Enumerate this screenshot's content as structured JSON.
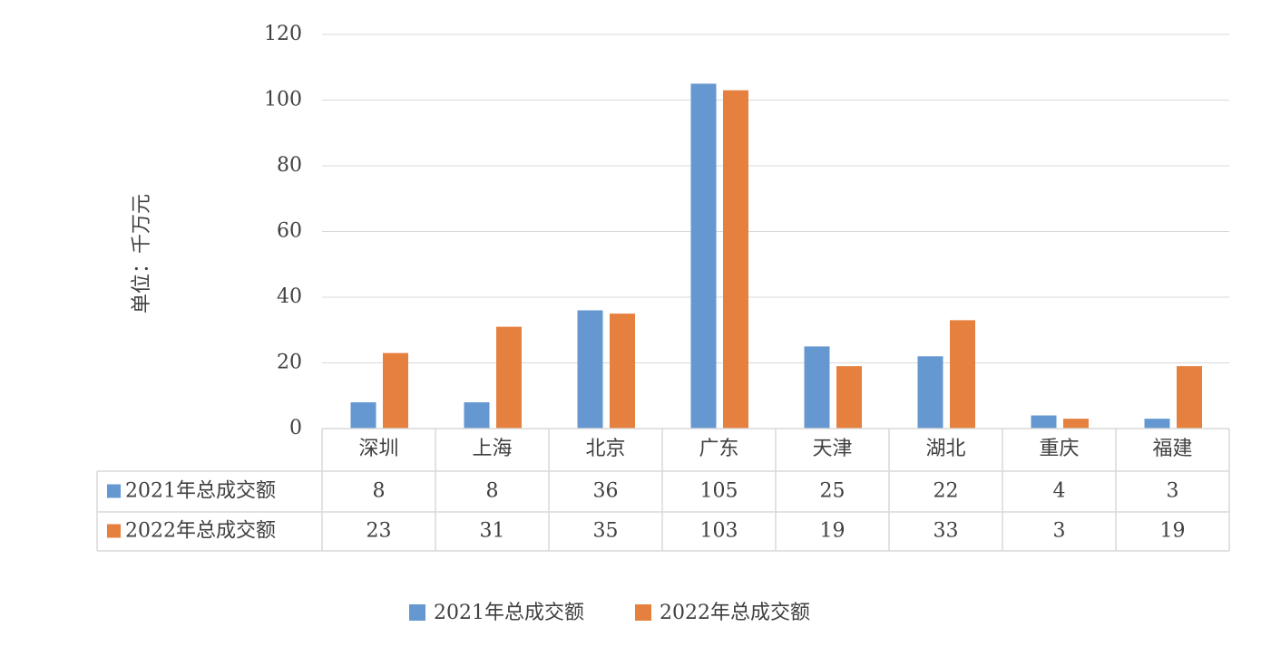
{
  "chart_data": {
    "type": "bar",
    "y_label": "单位：千万元",
    "categories": [
      "深圳",
      "上海",
      "北京",
      "广东",
      "天津",
      "湖北",
      "重庆",
      "福建"
    ],
    "series": [
      {
        "name": "2021年总成交额",
        "color": "#6597d0",
        "values": [
          8,
          8,
          36,
          105,
          25,
          22,
          4,
          3
        ]
      },
      {
        "name": "2022年总成交额",
        "color": "#e5803f",
        "values": [
          23,
          31,
          35,
          103,
          19,
          33,
          3,
          19
        ]
      }
    ],
    "ylim": [
      0,
      120
    ],
    "yticks": [
      0,
      20,
      40,
      60,
      80,
      100,
      120
    ],
    "grid": true,
    "legend": "bottom",
    "data_table": true
  }
}
